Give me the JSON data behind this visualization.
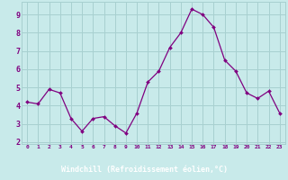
{
  "x": [
    0,
    1,
    2,
    3,
    4,
    5,
    6,
    7,
    8,
    9,
    10,
    11,
    12,
    13,
    14,
    15,
    16,
    17,
    18,
    19,
    20,
    21,
    22,
    23
  ],
  "y": [
    4.2,
    4.1,
    4.9,
    4.7,
    3.3,
    2.6,
    3.3,
    3.4,
    2.9,
    2.5,
    3.6,
    5.3,
    5.9,
    7.2,
    8.0,
    9.3,
    9.0,
    8.3,
    6.5,
    5.9,
    4.7,
    4.4,
    4.8,
    3.6
  ],
  "line_color": "#800080",
  "marker_color": "#800080",
  "bg_color": "#c8eaea",
  "grid_color": "#a8d0d0",
  "xlabel": "Windchill (Refroidissement éolien,°C)",
  "xlabel_color": "#ffffff",
  "tick_color": "#800080",
  "ylim": [
    1.9,
    9.7
  ],
  "xlim": [
    -0.5,
    23.5
  ],
  "yticks": [
    2,
    3,
    4,
    5,
    6,
    7,
    8,
    9
  ],
  "xticks": [
    0,
    1,
    2,
    3,
    4,
    5,
    6,
    7,
    8,
    9,
    10,
    11,
    12,
    13,
    14,
    15,
    16,
    17,
    18,
    19,
    20,
    21,
    22,
    23
  ],
  "xtick_labels": [
    "0",
    "1",
    "2",
    "3",
    "4",
    "5",
    "6",
    "7",
    "8",
    "9",
    "10",
    "11",
    "12",
    "13",
    "14",
    "15",
    "16",
    "17",
    "18",
    "19",
    "20",
    "21",
    "22",
    "23"
  ],
  "spine_color": "#808080",
  "bottom_bar_color": "#800080",
  "fig_bg_color": "#c8eaea"
}
